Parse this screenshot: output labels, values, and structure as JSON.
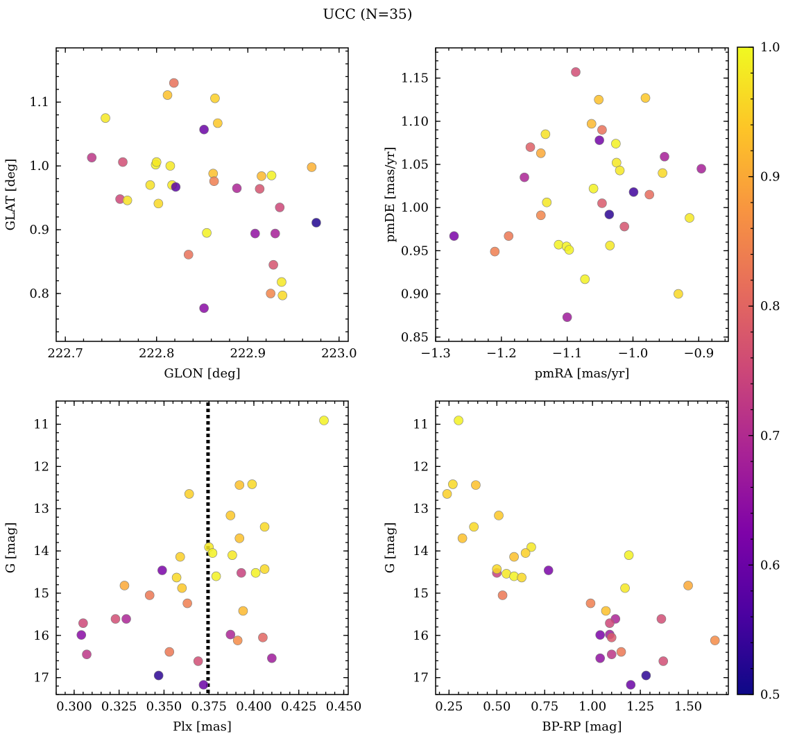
{
  "figure": {
    "title": "UCC (N=35)"
  },
  "colorbar": {
    "range": [
      0.5,
      1.0
    ],
    "ticks": [
      0.5,
      0.6,
      0.7,
      0.8,
      0.9,
      1.0
    ],
    "tick_labels": [
      "0.5",
      "0.6",
      "0.7",
      "0.8",
      "0.9",
      "1.0"
    ],
    "colormap": "plasma"
  },
  "chart_data": [
    {
      "type": "scatter",
      "xlabel": "GLON [deg]",
      "ylabel": "GLAT [deg]",
      "xlim": [
        222.69,
        223.01
      ],
      "ylim": [
        0.725,
        1.185
      ],
      "xticks": [
        222.7,
        222.8,
        222.9,
        223.0
      ],
      "xtick_labels": [
        "222.7",
        "222.8",
        "222.9",
        "223.0"
      ],
      "yticks": [
        0.8,
        0.9,
        1.0,
        1.1
      ],
      "ytick_labels": [
        "0.8",
        "0.9",
        "1.0",
        "1.1"
      ],
      "grid": false,
      "points": [
        {
          "x": 222.729,
          "y": 1.013,
          "c": 0.72
        },
        {
          "x": 222.744,
          "y": 1.075,
          "c": 0.98
        },
        {
          "x": 222.76,
          "y": 0.948,
          "c": 0.75
        },
        {
          "x": 222.763,
          "y": 1.006,
          "c": 0.76
        },
        {
          "x": 222.768,
          "y": 0.946,
          "c": 0.97
        },
        {
          "x": 222.793,
          "y": 0.97,
          "c": 0.97
        },
        {
          "x": 222.799,
          "y": 1.002,
          "c": 0.99
        },
        {
          "x": 222.8,
          "y": 1.006,
          "c": 0.98
        },
        {
          "x": 222.802,
          "y": 0.941,
          "c": 0.96
        },
        {
          "x": 222.812,
          "y": 1.111,
          "c": 0.93
        },
        {
          "x": 222.815,
          "y": 1.0,
          "c": 0.98
        },
        {
          "x": 222.817,
          "y": 0.97,
          "c": 0.98
        },
        {
          "x": 222.819,
          "y": 1.13,
          "c": 0.82
        },
        {
          "x": 222.821,
          "y": 0.967,
          "c": 0.58
        },
        {
          "x": 222.835,
          "y": 0.861,
          "c": 0.82
        },
        {
          "x": 222.852,
          "y": 1.057,
          "c": 0.6
        },
        {
          "x": 222.852,
          "y": 0.777,
          "c": 0.64
        },
        {
          "x": 222.855,
          "y": 0.895,
          "c": 0.99
        },
        {
          "x": 222.862,
          "y": 0.988,
          "c": 0.93
        },
        {
          "x": 222.863,
          "y": 0.976,
          "c": 0.84
        },
        {
          "x": 222.864,
          "y": 1.106,
          "c": 0.95
        },
        {
          "x": 222.867,
          "y": 1.067,
          "c": 0.94
        },
        {
          "x": 222.888,
          "y": 0.965,
          "c": 0.69
        },
        {
          "x": 222.908,
          "y": 0.894,
          "c": 0.65
        },
        {
          "x": 222.913,
          "y": 0.964,
          "c": 0.77
        },
        {
          "x": 222.915,
          "y": 0.984,
          "c": 0.92
        },
        {
          "x": 222.925,
          "y": 0.8,
          "c": 0.85
        },
        {
          "x": 222.926,
          "y": 0.985,
          "c": 0.99
        },
        {
          "x": 222.928,
          "y": 0.845,
          "c": 0.77
        },
        {
          "x": 222.93,
          "y": 0.894,
          "c": 0.68
        },
        {
          "x": 222.935,
          "y": 0.935,
          "c": 0.75
        },
        {
          "x": 222.937,
          "y": 0.818,
          "c": 0.98
        },
        {
          "x": 222.938,
          "y": 0.797,
          "c": 0.96
        },
        {
          "x": 222.97,
          "y": 0.998,
          "c": 0.91
        },
        {
          "x": 222.975,
          "y": 0.911,
          "c": 0.52
        }
      ]
    },
    {
      "type": "scatter",
      "xlabel": "pmRA [mas/yr]",
      "ylabel": "pmDE [mas/yr]",
      "xlim": [
        -1.3,
        -0.855
      ],
      "ylim": [
        0.845,
        1.185
      ],
      "xticks": [
        -1.3,
        -1.2,
        -1.1,
        -1.0,
        -0.9
      ],
      "xtick_labels": [
        "−1.3",
        "−1.2",
        "−1.1",
        "−1.0",
        "−0.9"
      ],
      "yticks": [
        0.85,
        0.9,
        0.95,
        1.0,
        1.05,
        1.1,
        1.15
      ],
      "ytick_labels": [
        "0.85",
        "0.90",
        "0.95",
        "1.00",
        "1.05",
        "1.10",
        "1.15"
      ],
      "grid": false,
      "points": [
        {
          "x": -1.272,
          "y": 0.967,
          "c": 0.62
        },
        {
          "x": -1.21,
          "y": 0.949,
          "c": 0.84
        },
        {
          "x": -1.189,
          "y": 0.967,
          "c": 0.83
        },
        {
          "x": -1.165,
          "y": 1.035,
          "c": 0.69
        },
        {
          "x": -1.156,
          "y": 1.07,
          "c": 0.79
        },
        {
          "x": -1.14,
          "y": 0.991,
          "c": 0.85
        },
        {
          "x": -1.14,
          "y": 1.063,
          "c": 0.9
        },
        {
          "x": -1.133,
          "y": 1.085,
          "c": 0.97
        },
        {
          "x": -1.131,
          "y": 1.006,
          "c": 0.98
        },
        {
          "x": -1.113,
          "y": 0.957,
          "c": 0.99
        },
        {
          "x": -1.101,
          "y": 0.955,
          "c": 0.99
        },
        {
          "x": -1.1,
          "y": 0.873,
          "c": 0.67
        },
        {
          "x": -1.097,
          "y": 0.951,
          "c": 0.99
        },
        {
          "x": -1.087,
          "y": 1.157,
          "c": 0.76
        },
        {
          "x": -1.073,
          "y": 0.917,
          "c": 0.99
        },
        {
          "x": -1.063,
          "y": 1.097,
          "c": 0.92
        },
        {
          "x": -1.06,
          "y": 1.022,
          "c": 0.99
        },
        {
          "x": -1.052,
          "y": 1.125,
          "c": 0.93
        },
        {
          "x": -1.051,
          "y": 1.078,
          "c": 0.61
        },
        {
          "x": -1.047,
          "y": 1.09,
          "c": 0.82
        },
        {
          "x": -1.047,
          "y": 1.005,
          "c": 0.78
        },
        {
          "x": -1.036,
          "y": 0.992,
          "c": 0.53
        },
        {
          "x": -1.035,
          "y": 0.956,
          "c": 0.98
        },
        {
          "x": -1.026,
          "y": 1.074,
          "c": 0.99
        },
        {
          "x": -1.025,
          "y": 1.052,
          "c": 0.98
        },
        {
          "x": -1.02,
          "y": 1.043,
          "c": 0.98
        },
        {
          "x": -1.013,
          "y": 0.978,
          "c": 0.77
        },
        {
          "x": -0.999,
          "y": 1.018,
          "c": 0.55
        },
        {
          "x": -0.981,
          "y": 1.127,
          "c": 0.94
        },
        {
          "x": -0.975,
          "y": 1.015,
          "c": 0.81
        },
        {
          "x": -0.955,
          "y": 1.04,
          "c": 0.96
        },
        {
          "x": -0.952,
          "y": 1.059,
          "c": 0.68
        },
        {
          "x": -0.931,
          "y": 0.9,
          "c": 0.96
        },
        {
          "x": -0.914,
          "y": 0.988,
          "c": 0.98
        },
        {
          "x": -0.896,
          "y": 1.045,
          "c": 0.68
        }
      ]
    },
    {
      "type": "scatter",
      "xlabel": "Plx [mas]",
      "ylabel": "G [mag]",
      "xlim": [
        0.29,
        0.4525
      ],
      "ylim": [
        17.4,
        10.45
      ],
      "xticks": [
        0.3,
        0.325,
        0.35,
        0.375,
        0.4,
        0.425,
        0.45
      ],
      "xtick_labels": [
        "0.300",
        "0.325",
        "0.350",
        "0.375",
        "0.400",
        "0.425",
        "0.450"
      ],
      "yticks": [
        11,
        12,
        13,
        14,
        15,
        16,
        17
      ],
      "ytick_labels": [
        "11",
        "12",
        "13",
        "14",
        "15",
        "16",
        "17"
      ],
      "grid": false,
      "vline": 0.3745,
      "points": [
        {
          "x": 0.439,
          "y": 10.91,
          "c": 0.99
        },
        {
          "x": 0.364,
          "y": 12.65,
          "c": 0.95
        },
        {
          "x": 0.399,
          "y": 12.42,
          "c": 0.96
        },
        {
          "x": 0.392,
          "y": 12.44,
          "c": 0.93
        },
        {
          "x": 0.387,
          "y": 13.16,
          "c": 0.94
        },
        {
          "x": 0.406,
          "y": 13.43,
          "c": 0.96
        },
        {
          "x": 0.392,
          "y": 13.7,
          "c": 0.93
        },
        {
          "x": 0.375,
          "y": 13.91,
          "c": 0.98
        },
        {
          "x": 0.377,
          "y": 14.05,
          "c": 0.99
        },
        {
          "x": 0.388,
          "y": 14.1,
          "c": 0.98
        },
        {
          "x": 0.359,
          "y": 14.14,
          "c": 0.95
        },
        {
          "x": 0.349,
          "y": 14.46,
          "c": 0.62
        },
        {
          "x": 0.393,
          "y": 14.52,
          "c": 0.74
        },
        {
          "x": 0.401,
          "y": 14.52,
          "c": 0.99
        },
        {
          "x": 0.406,
          "y": 14.43,
          "c": 0.96
        },
        {
          "x": 0.379,
          "y": 14.6,
          "c": 0.99
        },
        {
          "x": 0.357,
          "y": 14.63,
          "c": 0.96
        },
        {
          "x": 0.36,
          "y": 14.88,
          "c": 0.94
        },
        {
          "x": 0.328,
          "y": 14.82,
          "c": 0.9
        },
        {
          "x": 0.342,
          "y": 15.05,
          "c": 0.83
        },
        {
          "x": 0.363,
          "y": 15.24,
          "c": 0.84
        },
        {
          "x": 0.394,
          "y": 15.42,
          "c": 0.92
        },
        {
          "x": 0.323,
          "y": 15.61,
          "c": 0.76
        },
        {
          "x": 0.329,
          "y": 15.61,
          "c": 0.69
        },
        {
          "x": 0.305,
          "y": 15.71,
          "c": 0.75
        },
        {
          "x": 0.304,
          "y": 15.99,
          "c": 0.64
        },
        {
          "x": 0.387,
          "y": 15.98,
          "c": 0.69
        },
        {
          "x": 0.391,
          "y": 16.12,
          "c": 0.86
        },
        {
          "x": 0.405,
          "y": 16.05,
          "c": 0.8
        },
        {
          "x": 0.307,
          "y": 16.45,
          "c": 0.72
        },
        {
          "x": 0.353,
          "y": 16.39,
          "c": 0.83
        },
        {
          "x": 0.41,
          "y": 16.54,
          "c": 0.67
        },
        {
          "x": 0.369,
          "y": 16.61,
          "c": 0.76
        },
        {
          "x": 0.347,
          "y": 16.95,
          "c": 0.53
        },
        {
          "x": 0.372,
          "y": 17.17,
          "c": 0.6
        }
      ]
    },
    {
      "type": "scatter",
      "xlabel": "BP-RP [mag]",
      "ylabel": "G [mag]",
      "xlim": [
        0.18,
        1.71
      ],
      "ylim": [
        17.4,
        10.45
      ],
      "xticks": [
        0.25,
        0.5,
        0.75,
        1.0,
        1.25,
        1.5
      ],
      "xtick_labels": [
        "0.25",
        "0.50",
        "0.75",
        "1.00",
        "1.25",
        "1.50"
      ],
      "yticks": [
        11,
        12,
        13,
        14,
        15,
        16,
        17
      ],
      "ytick_labels": [
        "11",
        "12",
        "13",
        "14",
        "15",
        "16",
        "17"
      ],
      "grid": false,
      "points": [
        {
          "x": 0.3,
          "y": 10.91,
          "c": 0.99
        },
        {
          "x": 0.24,
          "y": 12.65,
          "c": 0.95
        },
        {
          "x": 0.27,
          "y": 12.42,
          "c": 0.96
        },
        {
          "x": 0.39,
          "y": 12.44,
          "c": 0.93
        },
        {
          "x": 0.51,
          "y": 13.16,
          "c": 0.94
        },
        {
          "x": 0.38,
          "y": 13.43,
          "c": 0.96
        },
        {
          "x": 0.32,
          "y": 13.7,
          "c": 0.93
        },
        {
          "x": 0.68,
          "y": 13.91,
          "c": 0.98
        },
        {
          "x": 0.65,
          "y": 14.05,
          "c": 0.95
        },
        {
          "x": 1.19,
          "y": 14.1,
          "c": 0.99
        },
        {
          "x": 0.59,
          "y": 14.14,
          "c": 0.93
        },
        {
          "x": 0.77,
          "y": 14.46,
          "c": 0.62
        },
        {
          "x": 0.5,
          "y": 14.52,
          "c": 0.74
        },
        {
          "x": 0.55,
          "y": 14.54,
          "c": 0.98
        },
        {
          "x": 0.5,
          "y": 14.43,
          "c": 0.96
        },
        {
          "x": 0.59,
          "y": 14.6,
          "c": 0.99
        },
        {
          "x": 0.63,
          "y": 14.63,
          "c": 0.96
        },
        {
          "x": 1.17,
          "y": 14.88,
          "c": 0.98
        },
        {
          "x": 1.5,
          "y": 14.82,
          "c": 0.9
        },
        {
          "x": 0.53,
          "y": 15.05,
          "c": 0.83
        },
        {
          "x": 0.99,
          "y": 15.24,
          "c": 0.84
        },
        {
          "x": 1.07,
          "y": 15.42,
          "c": 0.93
        },
        {
          "x": 1.36,
          "y": 15.61,
          "c": 0.76
        },
        {
          "x": 1.12,
          "y": 15.61,
          "c": 0.69
        },
        {
          "x": 1.09,
          "y": 15.71,
          "c": 0.75
        },
        {
          "x": 1.04,
          "y": 15.99,
          "c": 0.62
        },
        {
          "x": 1.09,
          "y": 15.98,
          "c": 0.67
        },
        {
          "x": 1.64,
          "y": 16.12,
          "c": 0.86
        },
        {
          "x": 1.1,
          "y": 16.05,
          "c": 0.78
        },
        {
          "x": 1.1,
          "y": 16.45,
          "c": 0.72
        },
        {
          "x": 1.15,
          "y": 16.39,
          "c": 0.83
        },
        {
          "x": 1.04,
          "y": 16.54,
          "c": 0.65
        },
        {
          "x": 1.37,
          "y": 16.61,
          "c": 0.76
        },
        {
          "x": 1.28,
          "y": 16.95,
          "c": 0.53
        },
        {
          "x": 1.2,
          "y": 17.17,
          "c": 0.6
        }
      ]
    }
  ]
}
